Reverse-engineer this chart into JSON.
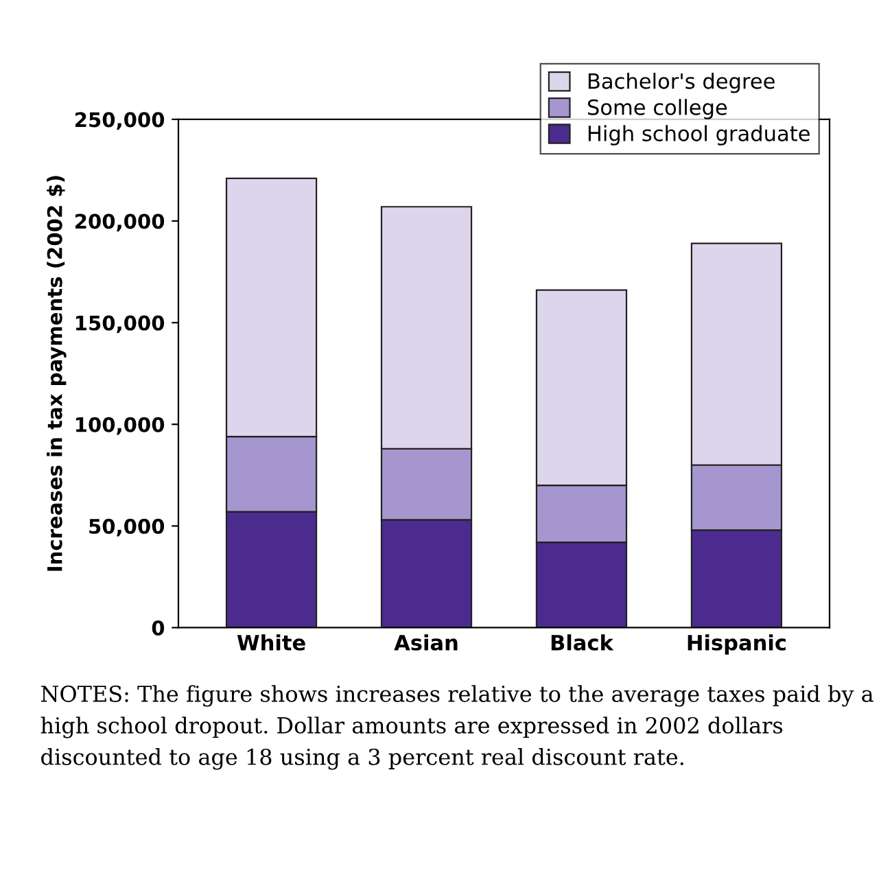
{
  "chart_data": {
    "type": "bar",
    "stacked": true,
    "categories": [
      "White",
      "Asian",
      "Black",
      "Hispanic"
    ],
    "ylabel": "Increases in tax payments (2002 $)",
    "series": [
      {
        "name": "High school graduate",
        "color": "#4b2c8e",
        "values": [
          57000,
          53000,
          42000,
          48000
        ]
      },
      {
        "name": "Some college",
        "color": "#a596cf",
        "values": [
          37000,
          35000,
          28000,
          32000
        ]
      },
      {
        "name": "Bachelor's degree",
        "color": "#dcd5ec",
        "values": [
          127000,
          119000,
          96000,
          109000
        ]
      }
    ],
    "ylim": [
      0,
      250000
    ],
    "yticks": [
      {
        "value": 0,
        "label": "0"
      },
      {
        "value": 50000,
        "label": "50,000"
      },
      {
        "value": 100000,
        "label": "100,000"
      },
      {
        "value": 150000,
        "label": "150,000"
      },
      {
        "value": 200000,
        "label": "200,000"
      },
      {
        "value": 250000,
        "label": "250,000"
      }
    ],
    "grid": false,
    "legend": "top right",
    "annotations": [
      "NOTES: The figure shows increases relative to the average taxes paid by a high school dropout. Dollar amounts are expressed in 2002 dollars discounted to age 18 using a 3 percent real discount rate."
    ]
  }
}
